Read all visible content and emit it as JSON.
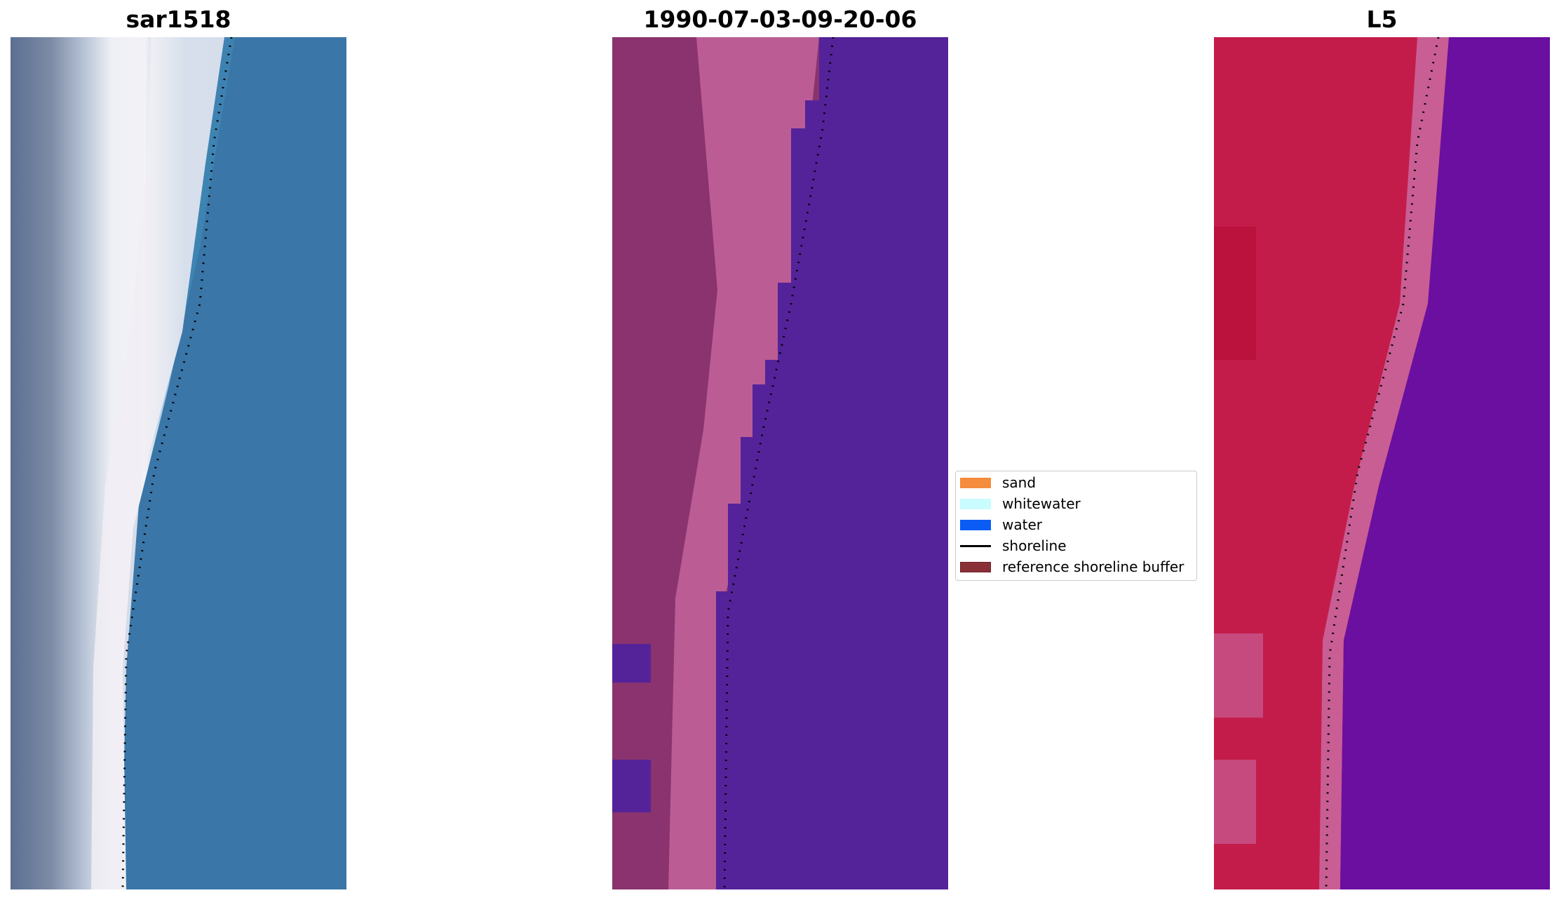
{
  "panels": [
    {
      "title": "sar1518",
      "kind": "rgb-image"
    },
    {
      "title": "1990-07-03-09-20-06",
      "kind": "classified-image"
    },
    {
      "title": "L5",
      "kind": "index-image"
    }
  ],
  "legend": {
    "items": [
      {
        "label": "sand",
        "color": "#f58b3c",
        "type": "patch"
      },
      {
        "label": "whitewater",
        "color": "#c8fcff",
        "type": "patch"
      },
      {
        "label": "water",
        "color": "#0b5cf5",
        "type": "patch"
      },
      {
        "label": "shoreline",
        "color": "#000000",
        "type": "line"
      },
      {
        "label": "reference shoreline buffer",
        "color": "#8b2f37",
        "type": "patch"
      }
    ]
  },
  "colors": {
    "sar_water": "#3a76a8",
    "sar_foam": "#f1eef4",
    "class_land": "#8a336e",
    "class_beach": "#bb5d94",
    "class_water": "#54239a",
    "index_land": "#c41c4a",
    "index_water": "#6a0fa0",
    "shoreline": "#000000"
  }
}
